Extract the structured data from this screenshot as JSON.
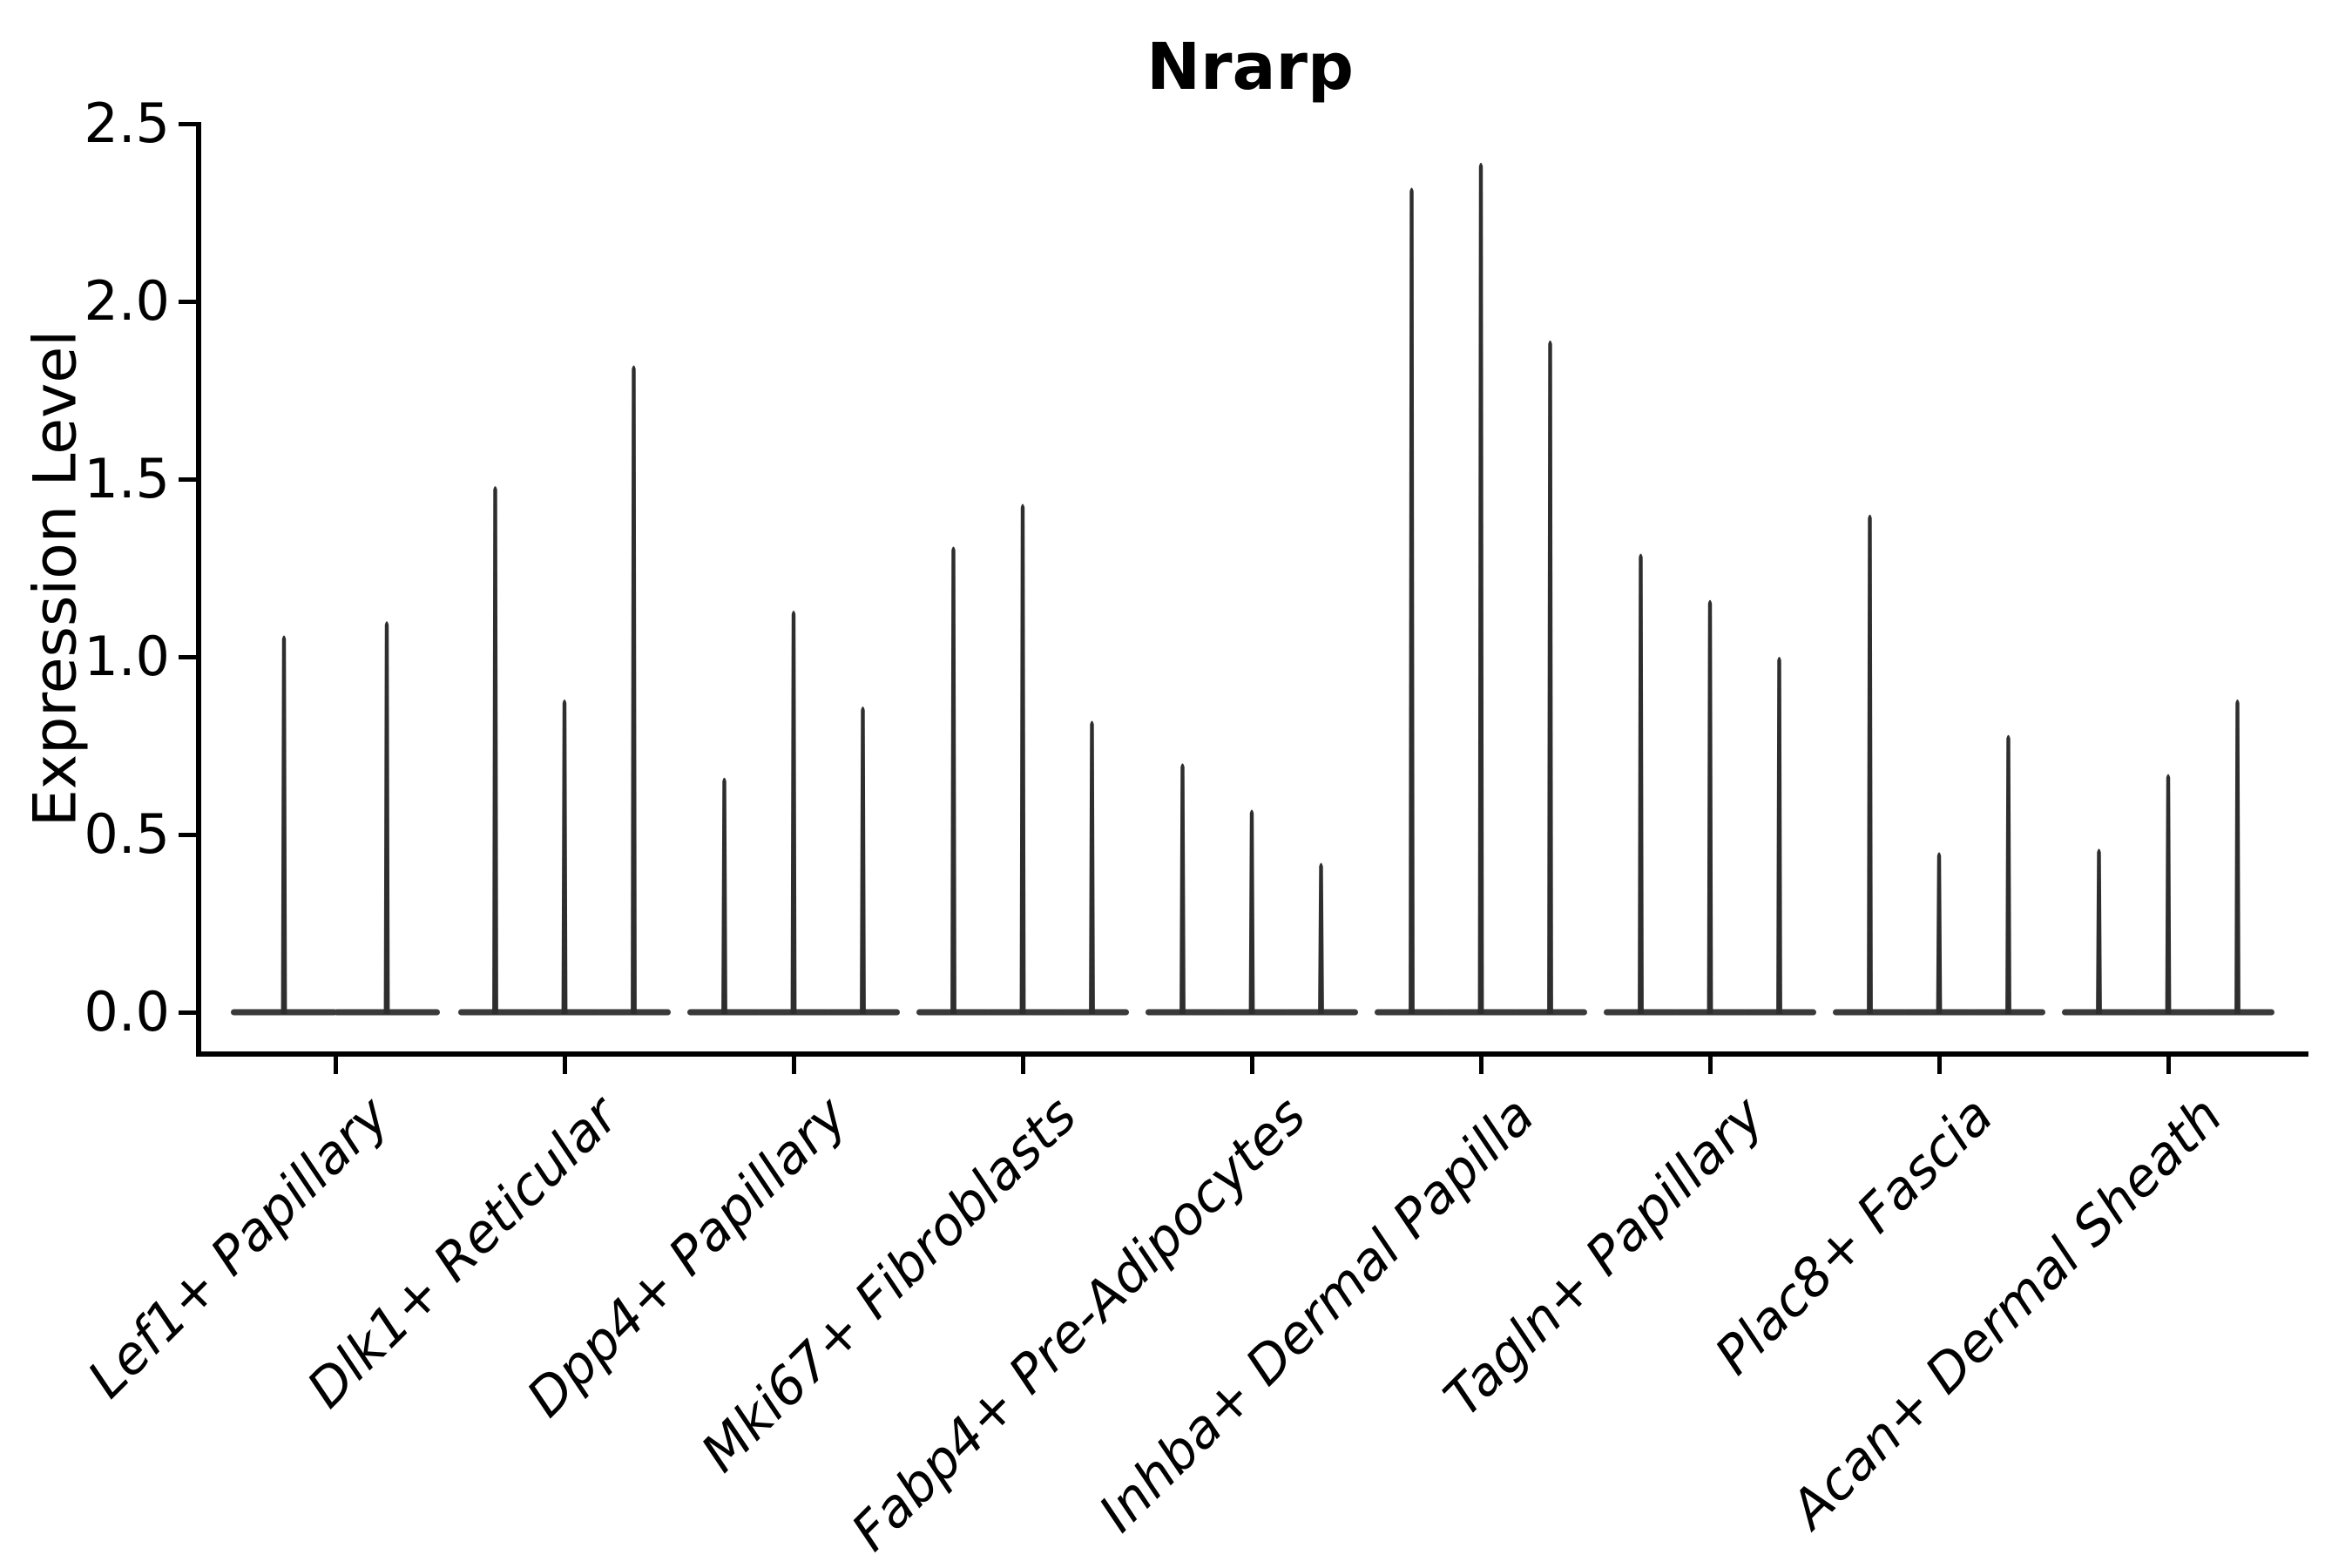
{
  "page": {
    "background": "#ffffff"
  },
  "chart_data": {
    "type": "violin",
    "title": "Nrarp",
    "ylabel": "Expression Level",
    "xlabel": "",
    "yticks": [
      "0.0",
      "0.5",
      "1.0",
      "1.5",
      "2.0",
      "2.5"
    ],
    "ytick_values": [
      0.0,
      0.5,
      1.0,
      1.5,
      2.0,
      2.5
    ],
    "ylim": [
      -0.12,
      2.51
    ],
    "grid": false,
    "legend_position": "none",
    "categories": [
      "Lef1+ Papillary",
      "Dlk1+ Reticular",
      "Dpp4+ Papillary",
      "Mki67+ Fibroblasts",
      "Fabp4+ Pre-Adipocytes",
      "Inhba+ Dermal Papilla",
      "Tagln+ Papillary",
      "Plac8+ Fascia",
      "Acan+ Dermal Sheath"
    ],
    "violin_maxima": [
      [
        1.06,
        1.1
      ],
      [
        1.48,
        0.88,
        1.82
      ],
      [
        0.66,
        1.13,
        0.86
      ],
      [
        1.31,
        1.43,
        0.82
      ],
      [
        0.7,
        0.57,
        0.42
      ],
      [
        2.32,
        2.39,
        1.89
      ],
      [
        1.29,
        1.16,
        1.0
      ],
      [
        1.4,
        0.45,
        0.78
      ],
      [
        0.46,
        0.67,
        0.88
      ]
    ],
    "baseline_value": 0.0,
    "colors": {
      "violin": "#2e2e2e",
      "violin_base": "#3a3a3a",
      "axis": "#000000",
      "text": "#000000"
    }
  }
}
